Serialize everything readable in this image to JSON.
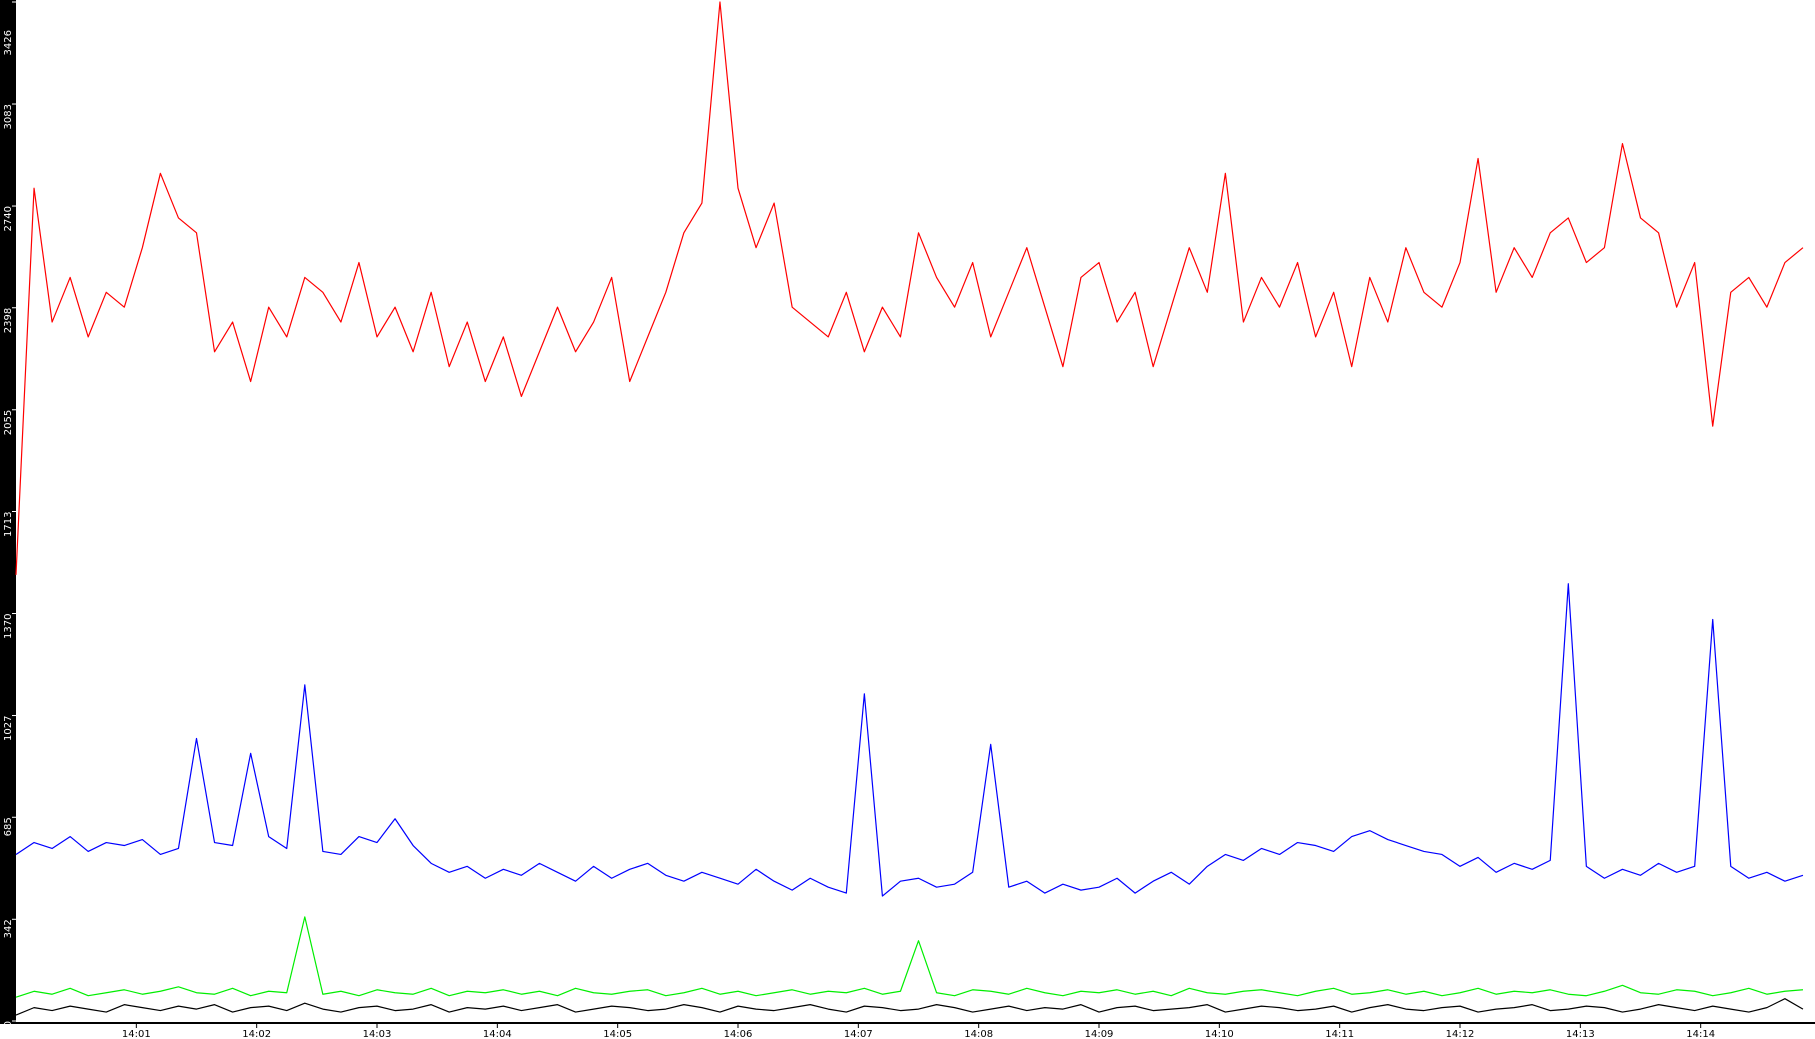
{
  "chart_data": {
    "type": "line",
    "x": [
      840,
      840.15,
      840.3,
      840.45,
      840.6,
      840.75,
      840.9,
      841.05,
      841.2,
      841.35,
      841.5,
      841.65,
      841.8,
      841.95,
      842.1,
      842.25,
      842.4,
      842.55,
      842.7,
      842.85,
      843,
      843.15,
      843.3,
      843.45,
      843.6,
      843.75,
      843.9,
      844.05,
      844.2,
      844.35,
      844.5,
      844.65,
      844.8,
      844.95,
      845.1,
      845.25,
      845.4,
      845.55,
      845.7,
      845.85,
      846,
      846.15,
      846.3,
      846.45,
      846.6,
      846.75,
      846.9,
      847.05,
      847.2,
      847.35,
      847.5,
      847.65,
      847.8,
      847.95,
      848.1,
      848.25,
      848.4,
      848.55,
      848.7,
      848.85,
      849,
      849.15,
      849.3,
      849.45,
      849.6,
      849.75,
      849.9,
      850.05,
      850.2,
      850.35,
      850.5,
      850.65,
      850.8,
      850.95,
      851.1,
      851.25,
      851.4,
      851.55,
      851.7,
      851.85,
      852,
      852.15,
      852.3,
      852.45,
      852.6,
      852.75,
      852.9,
      853.05,
      853.2,
      853.35,
      853.5,
      853.65,
      853.8,
      853.95,
      854.1,
      854.25,
      854.4,
      854.55,
      854.7,
      854.85
    ],
    "series": [
      {
        "color": "#ff0000",
        "values": [
          1500,
          2800,
          2350,
          2500,
          2300,
          2450,
          2400,
          2600,
          2850,
          2700,
          2650,
          2250,
          2350,
          2150,
          2400,
          2300,
          2500,
          2450,
          2350,
          2550,
          2300,
          2400,
          2250,
          2450,
          2200,
          2350,
          2150,
          2300,
          2100,
          2250,
          2400,
          2250,
          2350,
          2500,
          2150,
          2300,
          2450,
          2650,
          2750,
          3426,
          2800,
          2600,
          2750,
          2400,
          2350,
          2300,
          2450,
          2250,
          2400,
          2300,
          2650,
          2500,
          2400,
          2550,
          2300,
          2450,
          2600,
          2400,
          2200,
          2500,
          2550,
          2350,
          2450,
          2200,
          2400,
          2600,
          2450,
          2850,
          2350,
          2500,
          2400,
          2550,
          2300,
          2450,
          2200,
          2500,
          2350,
          2600,
          2450,
          2400,
          2550,
          2900,
          2450,
          2600,
          2500,
          2650,
          2700,
          2550,
          2600,
          2950,
          2700,
          2650,
          2400,
          2550,
          2000,
          2450,
          2500,
          2400,
          2550,
          2600
        ]
      },
      {
        "color": "#0000ff",
        "values": [
          560,
          600,
          580,
          620,
          570,
          600,
          590,
          610,
          560,
          580,
          950,
          600,
          590,
          900,
          620,
          580,
          1130,
          570,
          560,
          620,
          600,
          680,
          590,
          530,
          500,
          520,
          480,
          510,
          490,
          530,
          500,
          470,
          520,
          480,
          510,
          530,
          490,
          470,
          500,
          480,
          460,
          510,
          470,
          440,
          480,
          450,
          430,
          1100,
          420,
          470,
          480,
          450,
          460,
          500,
          930,
          450,
          470,
          430,
          460,
          440,
          450,
          480,
          430,
          470,
          500,
          460,
          520,
          560,
          540,
          580,
          560,
          600,
          590,
          570,
          620,
          640,
          610,
          590,
          570,
          560,
          520,
          550,
          500,
          530,
          510,
          540,
          1470,
          520,
          480,
          510,
          490,
          530,
          500,
          520,
          1350,
          520,
          480,
          500,
          470,
          490
        ]
      },
      {
        "color": "#00ee00",
        "values": [
          80,
          100,
          90,
          110,
          85,
          95,
          105,
          90,
          100,
          115,
          95,
          90,
          110,
          85,
          100,
          95,
          350,
          90,
          100,
          85,
          105,
          95,
          90,
          110,
          85,
          100,
          95,
          105,
          90,
          100,
          85,
          110,
          95,
          90,
          100,
          105,
          85,
          95,
          110,
          90,
          100,
          85,
          95,
          105,
          90,
          100,
          95,
          110,
          90,
          100,
          270,
          95,
          85,
          105,
          100,
          90,
          110,
          95,
          85,
          100,
          95,
          105,
          90,
          100,
          85,
          110,
          95,
          90,
          100,
          105,
          95,
          85,
          100,
          110,
          90,
          95,
          105,
          90,
          100,
          85,
          95,
          110,
          90,
          100,
          95,
          105,
          90,
          85,
          100,
          120,
          95,
          90,
          105,
          100,
          85,
          95,
          110,
          90,
          100,
          105
        ]
      },
      {
        "color": "#000000",
        "values": [
          20,
          45,
          35,
          50,
          40,
          30,
          55,
          45,
          35,
          50,
          40,
          55,
          30,
          45,
          50,
          35,
          60,
          40,
          30,
          45,
          50,
          35,
          40,
          55,
          30,
          45,
          40,
          50,
          35,
          45,
          55,
          30,
          40,
          50,
          45,
          35,
          40,
          55,
          45,
          30,
          50,
          40,
          35,
          45,
          55,
          40,
          30,
          50,
          45,
          35,
          40,
          55,
          45,
          30,
          40,
          50,
          35,
          45,
          40,
          55,
          30,
          45,
          50,
          35,
          40,
          45,
          55,
          30,
          40,
          50,
          45,
          35,
          40,
          50,
          30,
          45,
          55,
          40,
          35,
          45,
          50,
          30,
          40,
          45,
          55,
          35,
          40,
          50,
          45,
          30,
          40,
          55,
          45,
          35,
          50,
          40,
          30,
          45,
          75,
          40
        ]
      }
    ],
    "xlim": [
      840,
      854.95
    ],
    "ylim": [
      0,
      3426
    ],
    "yticks": [
      0,
      342,
      685,
      1027,
      1370,
      1713,
      2055,
      2398,
      2740,
      3083,
      3426
    ],
    "xticks": [
      {
        "value": 841,
        "label": "14:01"
      },
      {
        "value": 842,
        "label": "14:02"
      },
      {
        "value": 843,
        "label": "14:03"
      },
      {
        "value": 844,
        "label": "14:04"
      },
      {
        "value": 845,
        "label": "14:05"
      },
      {
        "value": 846,
        "label": "14:06"
      },
      {
        "value": 847,
        "label": "14:07"
      },
      {
        "value": 848,
        "label": "14:08"
      },
      {
        "value": 849,
        "label": "14:09"
      },
      {
        "value": 850,
        "label": "14:10"
      },
      {
        "value": 851,
        "label": "14:11"
      },
      {
        "value": 852,
        "label": "14:12"
      },
      {
        "value": 853,
        "label": "14:13"
      },
      {
        "value": 854,
        "label": "14:14"
      }
    ],
    "grid": false
  }
}
